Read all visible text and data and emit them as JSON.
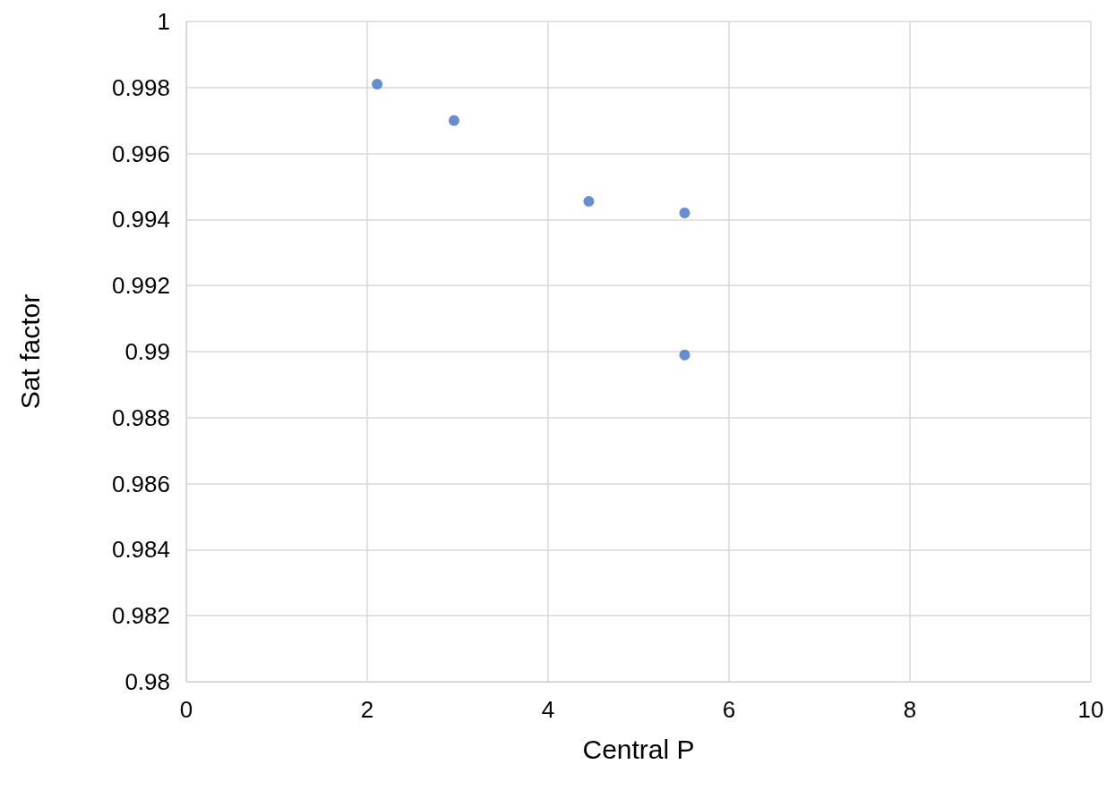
{
  "chart_data": {
    "type": "scatter",
    "xlabel": "Central P",
    "ylabel": "Sat factor",
    "x": [
      2.11,
      2.96,
      4.45,
      5.51,
      5.51
    ],
    "values": [
      0.9981,
      0.997,
      0.99455,
      0.9942,
      0.9899
    ],
    "color": "#4472c4",
    "marker": "circle",
    "xlim": [
      0,
      10
    ],
    "xticks": [
      0,
      2,
      4,
      6,
      8,
      10
    ],
    "ylim": [
      0.98,
      1
    ],
    "yticks": [
      0.98,
      0.982,
      0.984,
      0.986,
      0.988,
      0.99,
      0.992,
      0.994,
      0.996,
      0.998,
      1
    ],
    "grid": true
  }
}
